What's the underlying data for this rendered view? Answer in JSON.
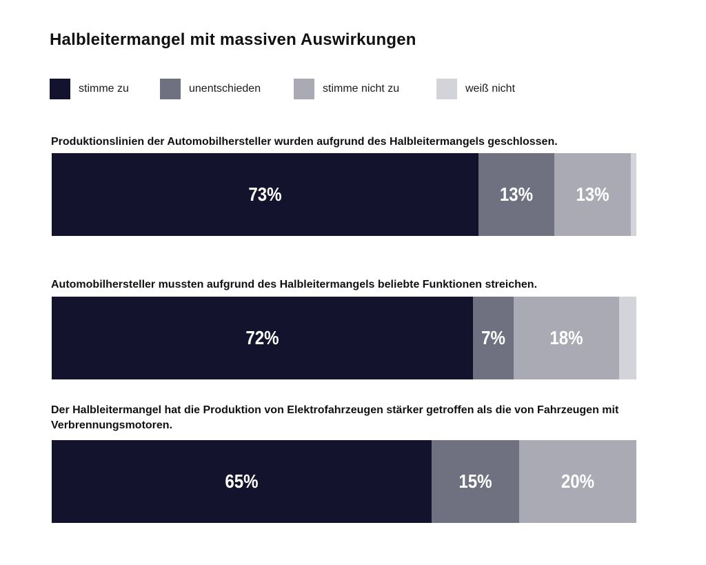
{
  "title": "Halbleitermangel mit massiven Auswirkungen",
  "legend": [
    {
      "label": "stimme zu",
      "color": "#13132d"
    },
    {
      "label": "unentschieden",
      "color": "#6f7181"
    },
    {
      "label": "stimme nicht zu",
      "color": "#a9aab4"
    },
    {
      "label": "weiß nicht",
      "color": "#d3d4d9"
    }
  ],
  "chart_data": {
    "type": "bar",
    "orientation": "horizontal",
    "stacked": true,
    "normalized": true,
    "series_names": [
      "stimme zu",
      "unentschieden",
      "stimme nicht zu",
      "weiß nicht"
    ],
    "colors": [
      "#13132d",
      "#6f7181",
      "#a9aab4",
      "#d3d4d9"
    ],
    "rows": [
      {
        "question": "Produktionslinien der Automobilhersteller wurden aufgrund des Halbleitermangels geschlossen.",
        "values": [
          73,
          13,
          13,
          1
        ],
        "labels": [
          "73%",
          "13%",
          "13%",
          ""
        ]
      },
      {
        "question": "Automobilhersteller mussten aufgrund des Halbleitermangels beliebte Funktionen streichen.",
        "values": [
          72,
          7,
          18,
          3
        ],
        "labels": [
          "72%",
          "7%",
          "18%",
          ""
        ]
      },
      {
        "question": "Der Halbleitermangel hat die Produktion von Elektrofahrzeugen stärker getroffen als die von Fahrzeugen mit Verbrennungsmotoren.",
        "values": [
          65,
          15,
          20,
          0
        ],
        "labels": [
          "65%",
          "15%",
          "20%",
          ""
        ]
      }
    ]
  }
}
